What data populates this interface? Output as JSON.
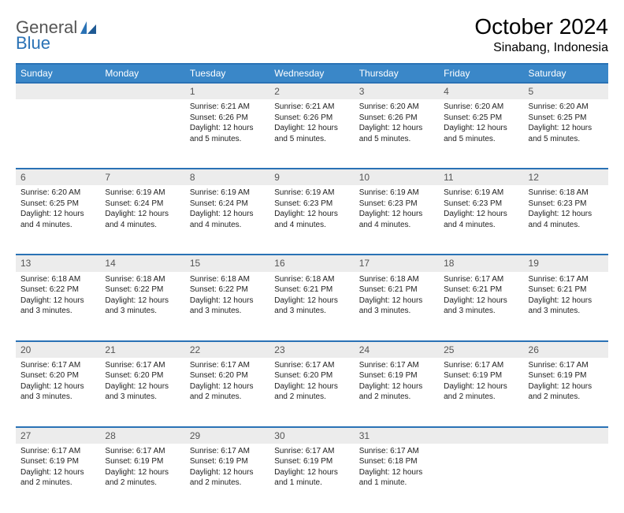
{
  "brand": {
    "general": "General",
    "blue": "Blue"
  },
  "title": "October 2024",
  "location": "Sinabang, Indonesia",
  "colors": {
    "header_bg": "#3a87c8",
    "header_border": "#2a72b5",
    "daynum_bg": "#ececec",
    "daynum_text": "#555555",
    "body_text": "#222222",
    "page_bg": "#ffffff",
    "logo_gray": "#555555",
    "logo_blue": "#2a72b5"
  },
  "typography": {
    "title_fontsize": 28,
    "location_fontsize": 16,
    "weekday_fontsize": 12,
    "daynum_fontsize": 12,
    "body_fontsize": 10
  },
  "weekdays": [
    "Sunday",
    "Monday",
    "Tuesday",
    "Wednesday",
    "Thursday",
    "Friday",
    "Saturday"
  ],
  "weeks": [
    [
      null,
      null,
      {
        "n": "1",
        "sunrise": "Sunrise: 6:21 AM",
        "sunset": "Sunset: 6:26 PM",
        "daylight": "Daylight: 12 hours and 5 minutes."
      },
      {
        "n": "2",
        "sunrise": "Sunrise: 6:21 AM",
        "sunset": "Sunset: 6:26 PM",
        "daylight": "Daylight: 12 hours and 5 minutes."
      },
      {
        "n": "3",
        "sunrise": "Sunrise: 6:20 AM",
        "sunset": "Sunset: 6:26 PM",
        "daylight": "Daylight: 12 hours and 5 minutes."
      },
      {
        "n": "4",
        "sunrise": "Sunrise: 6:20 AM",
        "sunset": "Sunset: 6:25 PM",
        "daylight": "Daylight: 12 hours and 5 minutes."
      },
      {
        "n": "5",
        "sunrise": "Sunrise: 6:20 AM",
        "sunset": "Sunset: 6:25 PM",
        "daylight": "Daylight: 12 hours and 5 minutes."
      }
    ],
    [
      {
        "n": "6",
        "sunrise": "Sunrise: 6:20 AM",
        "sunset": "Sunset: 6:25 PM",
        "daylight": "Daylight: 12 hours and 4 minutes."
      },
      {
        "n": "7",
        "sunrise": "Sunrise: 6:19 AM",
        "sunset": "Sunset: 6:24 PM",
        "daylight": "Daylight: 12 hours and 4 minutes."
      },
      {
        "n": "8",
        "sunrise": "Sunrise: 6:19 AM",
        "sunset": "Sunset: 6:24 PM",
        "daylight": "Daylight: 12 hours and 4 minutes."
      },
      {
        "n": "9",
        "sunrise": "Sunrise: 6:19 AM",
        "sunset": "Sunset: 6:23 PM",
        "daylight": "Daylight: 12 hours and 4 minutes."
      },
      {
        "n": "10",
        "sunrise": "Sunrise: 6:19 AM",
        "sunset": "Sunset: 6:23 PM",
        "daylight": "Daylight: 12 hours and 4 minutes."
      },
      {
        "n": "11",
        "sunrise": "Sunrise: 6:19 AM",
        "sunset": "Sunset: 6:23 PM",
        "daylight": "Daylight: 12 hours and 4 minutes."
      },
      {
        "n": "12",
        "sunrise": "Sunrise: 6:18 AM",
        "sunset": "Sunset: 6:23 PM",
        "daylight": "Daylight: 12 hours and 4 minutes."
      }
    ],
    [
      {
        "n": "13",
        "sunrise": "Sunrise: 6:18 AM",
        "sunset": "Sunset: 6:22 PM",
        "daylight": "Daylight: 12 hours and 3 minutes."
      },
      {
        "n": "14",
        "sunrise": "Sunrise: 6:18 AM",
        "sunset": "Sunset: 6:22 PM",
        "daylight": "Daylight: 12 hours and 3 minutes."
      },
      {
        "n": "15",
        "sunrise": "Sunrise: 6:18 AM",
        "sunset": "Sunset: 6:22 PM",
        "daylight": "Daylight: 12 hours and 3 minutes."
      },
      {
        "n": "16",
        "sunrise": "Sunrise: 6:18 AM",
        "sunset": "Sunset: 6:21 PM",
        "daylight": "Daylight: 12 hours and 3 minutes."
      },
      {
        "n": "17",
        "sunrise": "Sunrise: 6:18 AM",
        "sunset": "Sunset: 6:21 PM",
        "daylight": "Daylight: 12 hours and 3 minutes."
      },
      {
        "n": "18",
        "sunrise": "Sunrise: 6:17 AM",
        "sunset": "Sunset: 6:21 PM",
        "daylight": "Daylight: 12 hours and 3 minutes."
      },
      {
        "n": "19",
        "sunrise": "Sunrise: 6:17 AM",
        "sunset": "Sunset: 6:21 PM",
        "daylight": "Daylight: 12 hours and 3 minutes."
      }
    ],
    [
      {
        "n": "20",
        "sunrise": "Sunrise: 6:17 AM",
        "sunset": "Sunset: 6:20 PM",
        "daylight": "Daylight: 12 hours and 3 minutes."
      },
      {
        "n": "21",
        "sunrise": "Sunrise: 6:17 AM",
        "sunset": "Sunset: 6:20 PM",
        "daylight": "Daylight: 12 hours and 3 minutes."
      },
      {
        "n": "22",
        "sunrise": "Sunrise: 6:17 AM",
        "sunset": "Sunset: 6:20 PM",
        "daylight": "Daylight: 12 hours and 2 minutes."
      },
      {
        "n": "23",
        "sunrise": "Sunrise: 6:17 AM",
        "sunset": "Sunset: 6:20 PM",
        "daylight": "Daylight: 12 hours and 2 minutes."
      },
      {
        "n": "24",
        "sunrise": "Sunrise: 6:17 AM",
        "sunset": "Sunset: 6:19 PM",
        "daylight": "Daylight: 12 hours and 2 minutes."
      },
      {
        "n": "25",
        "sunrise": "Sunrise: 6:17 AM",
        "sunset": "Sunset: 6:19 PM",
        "daylight": "Daylight: 12 hours and 2 minutes."
      },
      {
        "n": "26",
        "sunrise": "Sunrise: 6:17 AM",
        "sunset": "Sunset: 6:19 PM",
        "daylight": "Daylight: 12 hours and 2 minutes."
      }
    ],
    [
      {
        "n": "27",
        "sunrise": "Sunrise: 6:17 AM",
        "sunset": "Sunset: 6:19 PM",
        "daylight": "Daylight: 12 hours and 2 minutes."
      },
      {
        "n": "28",
        "sunrise": "Sunrise: 6:17 AM",
        "sunset": "Sunset: 6:19 PM",
        "daylight": "Daylight: 12 hours and 2 minutes."
      },
      {
        "n": "29",
        "sunrise": "Sunrise: 6:17 AM",
        "sunset": "Sunset: 6:19 PM",
        "daylight": "Daylight: 12 hours and 2 minutes."
      },
      {
        "n": "30",
        "sunrise": "Sunrise: 6:17 AM",
        "sunset": "Sunset: 6:19 PM",
        "daylight": "Daylight: 12 hours and 1 minute."
      },
      {
        "n": "31",
        "sunrise": "Sunrise: 6:17 AM",
        "sunset": "Sunset: 6:18 PM",
        "daylight": "Daylight: 12 hours and 1 minute."
      },
      null,
      null
    ]
  ]
}
